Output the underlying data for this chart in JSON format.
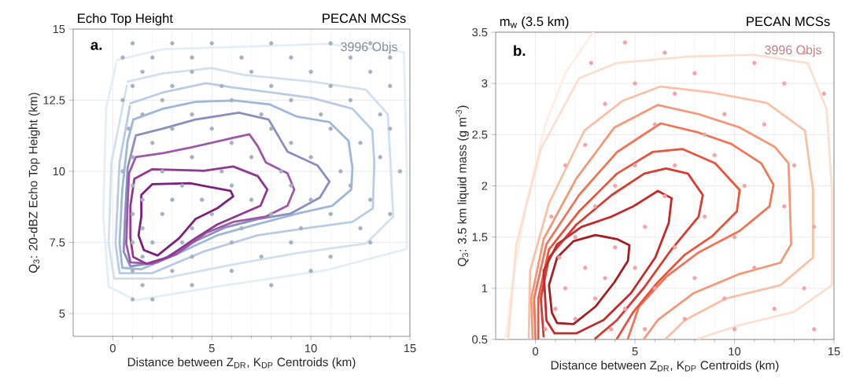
{
  "chart_data": [
    {
      "type": "line",
      "title": "Echo Top Height",
      "subtitle": "PECAN MCSs",
      "xlabel": "Distance between Z$_{DR}$, K$_{DP}$ Centroids (km)",
      "ylabel": "Q$_{3}$: 20-dBZ Echo Top Height (km)",
      "xlim": [
        -2,
        15
      ],
      "ylim": [
        4.2,
        15
      ],
      "xticks": [
        0,
        5,
        10,
        15
      ],
      "yticks": [
        5,
        7.5,
        10,
        12.5,
        15
      ],
      "grid": true,
      "annotations": [
        "a.",
        "3996 Objs"
      ],
      "series": [
        {
          "type": "scatter",
          "color": "#a9b1c0",
          "x": [
            1,
            3,
            5,
            8,
            11,
            13,
            0.5,
            2,
            4,
            6.5,
            9,
            12,
            14,
            1.5,
            4,
            7,
            10,
            13,
            1,
            3,
            5.5,
            8,
            11,
            14,
            0.5,
            2.5,
            6,
            9,
            12,
            1.5,
            4,
            7.5,
            10.5,
            13.5,
            0.8,
            3,
            5,
            8,
            11,
            14,
            2,
            6,
            9,
            12.5,
            1,
            4,
            7,
            10,
            13.5,
            0.5,
            2.5,
            5.5,
            8.5,
            11.5,
            14.5,
            1,
            3.5,
            6,
            9,
            12,
            1.5,
            3,
            4.5,
            7,
            10,
            13,
            1,
            2.5,
            5,
            8,
            11,
            14,
            1.5,
            4,
            6.5,
            9.5,
            12.5,
            1,
            2,
            3.5,
            6,
            9,
            13,
            1.5,
            4,
            7.5,
            11,
            1,
            3,
            6,
            10,
            1.5,
            4,
            8,
            1,
            2
          ],
          "values": [
            14.5,
            14.5,
            14.5,
            14.5,
            14.5,
            14.5,
            14,
            14,
            14,
            14,
            14,
            14,
            14,
            13.5,
            13.5,
            13.5,
            13.5,
            13.5,
            13,
            13,
            13,
            13,
            13,
            13,
            12.5,
            12.5,
            12.5,
            12.5,
            12.5,
            12,
            12,
            12,
            12,
            12,
            11.5,
            11.5,
            11.5,
            11.5,
            11.5,
            11.5,
            11,
            11,
            11,
            11,
            10.5,
            10.5,
            10.5,
            10.5,
            10.5,
            10,
            10,
            10,
            10,
            10,
            10,
            9.5,
            9.5,
            9.5,
            9.5,
            9.5,
            9,
            9,
            9,
            9,
            9,
            9,
            8.5,
            8.5,
            8.5,
            8.5,
            8.5,
            8.5,
            8,
            8,
            8,
            8,
            8,
            7.5,
            7.5,
            7.5,
            7.5,
            7.5,
            7.5,
            7,
            7,
            7,
            7,
            6.5,
            6.5,
            6.5,
            6.5,
            6,
            6,
            6,
            5.5,
            5.5
          ]
        },
        {
          "color": "#e4eef5",
          "x": [
            0.21,
            2.53,
            6.63,
            10.74,
            14.7,
            14.84,
            14.84,
            10.74,
            5.27,
            1.16,
            -0.21,
            -0.48,
            -0.34,
            0.18
          ],
          "values": [
            13.91,
            14.29,
            14.38,
            14.48,
            14.19,
            10.31,
            7.27,
            6.52,
            5.95,
            5.47,
            5.95,
            8.41,
            12.2,
            13.82
          ]
        },
        {
          "color": "#d3e0ee",
          "x": [
            0.75,
            2.53,
            5.0,
            6.63,
            10.06,
            12.78,
            13.88,
            14.02,
            14.16,
            12.78,
            9.36,
            5.95,
            2.53,
            0.07,
            -0.21,
            -0.07,
            0.71
          ],
          "values": [
            13.15,
            13.44,
            13.63,
            13.39,
            13.15,
            12.87,
            12.01,
            10.31,
            8.41,
            7.46,
            7.13,
            6.71,
            6.23,
            6.23,
            7.46,
            10.31,
            13.01
          ]
        },
        {
          "color": "#b9cce4",
          "x": [
            0.89,
            2.53,
            4.72,
            5.95,
            8.0,
            10.06,
            12.1,
            13.1,
            13.2,
            13.13,
            12.1,
            10.06,
            7.32,
            4.58,
            1.98,
            0.34,
            0.14,
            0.34,
            0.86
          ],
          "values": [
            12.39,
            12.77,
            13.1,
            12.96,
            12.77,
            12.58,
            12.2,
            11.45,
            10.31,
            8.7,
            8.22,
            8.03,
            7.75,
            7.18,
            6.42,
            6.42,
            7.46,
            10.31,
            12.29
          ]
        },
        {
          "color": "#9fb8d8",
          "x": [
            1.03,
            2.53,
            4.17,
            6.15,
            7.93,
            9.3,
            10.94,
            11.9,
            12.1,
            12.04,
            11.08,
            9.3,
            7.25,
            5.27,
            3.22,
            1.44,
            0.48,
            0.34,
            0.48,
            0.75,
            1.02
          ],
          "values": [
            11.82,
            12.2,
            12.44,
            12.49,
            12.35,
            11.92,
            11.73,
            11.07,
            10.12,
            9.36,
            8.79,
            8.51,
            8.13,
            7.75,
            7.09,
            6.56,
            6.61,
            7.46,
            9.36,
            11.07,
            11.78
          ]
        },
        {
          "color": "#8a8fc0",
          "x": [
            1.16,
            2.53,
            4.17,
            6.36,
            7.87,
            8.82,
            10.33,
            10.94,
            10.46,
            8.96,
            7.32,
            5.68,
            3.9,
            2.26,
            0.89,
            0.55,
            0.62,
            0.75,
            1.14
          ],
          "values": [
            11.26,
            11.5,
            11.82,
            12.06,
            11.82,
            10.69,
            10.21,
            9.64,
            9.08,
            8.51,
            8.32,
            8.03,
            7.46,
            6.8,
            6.66,
            7.18,
            8.41,
            10.12,
            11.2
          ]
        },
        {
          "color": "#9b59a8",
          "x": [
            1.16,
            2.53,
            3.9,
            5.95,
            6.9,
            7.32,
            7.73,
            8.82,
            9.16,
            8.82,
            7.73,
            6.08,
            4.72,
            3.22,
            1.98,
            0.89,
            0.68,
            0.75,
            0.82,
            1.14
          ],
          "values": [
            10.5,
            10.64,
            10.83,
            11.16,
            11.3,
            10.88,
            10.31,
            9.93,
            9.36,
            8.79,
            8.41,
            8.22,
            7.84,
            7.09,
            6.75,
            6.8,
            7.46,
            8.89,
            9.93,
            10.47
          ]
        },
        {
          "color": "#8e3a8f",
          "x": [
            1.09,
            1.98,
            4.58,
            6.08,
            7.32,
            7.8,
            7.46,
            6.2,
            5.27,
            4.17,
            2.8,
            1.71,
            1.03,
            0.89,
            0.89,
            1.08
          ],
          "values": [
            9.74,
            10.07,
            10.02,
            10.17,
            9.83,
            9.36,
            8.79,
            8.41,
            8.13,
            7.65,
            6.99,
            6.75,
            6.99,
            7.65,
            8.79,
            9.69
          ]
        },
        {
          "color": "#7b1f7f",
          "x": [
            1.44,
            2.0,
            3.9,
            5.95,
            6.08,
            5.27,
            4.17,
            3.35,
            2.26,
            1.57,
            1.3,
            1.44,
            1.44
          ],
          "values": [
            9.17,
            9.55,
            9.58,
            9.31,
            9.12,
            8.7,
            8.32,
            7.65,
            7.04,
            7.23,
            7.75,
            8.41,
            9.13
          ]
        }
      ]
    },
    {
      "type": "line",
      "title": "m$_{w}$ (3.5 km)",
      "subtitle": "PECAN MCSs",
      "xlabel": "Distance between Z$_{DR}$, K$_{DP}$ Centroids (km)",
      "ylabel": "Q$_{3}$: 3.5 km liquid mass (g m$^{-3}$)",
      "xlim": [
        -2,
        15
      ],
      "ylim": [
        0.5,
        3.5
      ],
      "xticks": [
        0,
        5,
        10,
        15
      ],
      "yticks": [
        0.5,
        1,
        1.5,
        2,
        2.5,
        3,
        3.5
      ],
      "grid": true,
      "annotations": [
        "b.",
        "3996 Objs"
      ],
      "series": [
        {
          "type": "scatter",
          "color": "#f4a3a8",
          "x": [
            0.5,
            1,
            1.5,
            2,
            2.5,
            1.2,
            3,
            3.5,
            2,
            4,
            4.5,
            5,
            5.5,
            6,
            3,
            4,
            5,
            6.5,
            7,
            7.5,
            8,
            8.5,
            9,
            9.5,
            10,
            10.5,
            11,
            11.5,
            12,
            12.5,
            13,
            13.5,
            14,
            14.5,
            14,
            6,
            7,
            8,
            9.5,
            11,
            12.5,
            13.5,
            2.5,
            3.5,
            5,
            6.5,
            1.5,
            2.8,
            4.5,
            0.8,
            10,
            5.5,
            7,
            8.5,
            3.8
          ],
          "values": [
            0.6,
            0.8,
            1.0,
            0.7,
            1.2,
            1.3,
            0.9,
            1.1,
            1.5,
            1.4,
            0.8,
            1.2,
            1.6,
            1.0,
            1.8,
            2.0,
            2.2,
            1.9,
            1.4,
            0.7,
            1.1,
            1.7,
            2.3,
            0.9,
            1.5,
            2.0,
            1.2,
            2.6,
            0.8,
            1.8,
            2.2,
            1.0,
            1.6,
            2.9,
            0.6,
            2.6,
            2.9,
            3.1,
            2.7,
            3.2,
            3.0,
            3.3,
            2.4,
            2.8,
            3.0,
            3.3,
            2.2,
            3.2,
            3.4,
            1.7,
            0.6,
            0.6,
            2.2,
            2.5,
            0.6
          ]
        },
        {
          "color": "#fdeee6",
          "x": [
            -1.5,
            -1.2,
            -0.5,
            0.5,
            1.5,
            2.9
          ],
          "values": [
            0.5,
            1.0,
            1.8,
            2.6,
            3.1,
            3.5
          ]
        },
        {
          "color": "#fbe0d2",
          "x": [
            -1.37,
            -0.96,
            0.27,
            2.19,
            4.1,
            7.52,
            10.94,
            13.68,
            14.63,
            14.9,
            14.9,
            12.99,
            10.26,
            8.2
          ],
          "values": [
            0.51,
            1.43,
            2.36,
            3.05,
            3.2,
            3.26,
            3.28,
            3.2,
            2.75,
            1.96,
            1.03,
            0.77,
            0.64,
            0.51
          ]
        },
        {
          "color": "#f9c2a8",
          "x": [
            -0.34,
            -0.27,
            0.68,
            2.46,
            4.38,
            6.29,
            8.89,
            11.62,
            13.54,
            13.95,
            13.95,
            12.31,
            9.57,
            7.52,
            6.56
          ],
          "values": [
            0.51,
            1.17,
            1.83,
            2.54,
            2.83,
            2.97,
            2.91,
            2.81,
            2.54,
            1.96,
            1.3,
            1.03,
            0.9,
            0.69,
            0.51
          ]
        },
        {
          "color": "#f4987a",
          "x": [
            -0.14,
            -0.21,
            0.41,
            2.05,
            3.97,
            6.15,
            8.2,
            10.26,
            12.03,
            12.72,
            12.85,
            12.31,
            10.26,
            7.93,
            6.15,
            5.47
          ],
          "values": [
            0.51,
            0.9,
            1.48,
            2.07,
            2.57,
            2.79,
            2.7,
            2.57,
            2.38,
            2.22,
            1.43,
            1.25,
            1.14,
            0.95,
            0.69,
            0.51
          ]
        },
        {
          "color": "#f0765a",
          "x": [
            0,
            -0.07,
            0.55,
            2.19,
            4.1,
            6.29,
            8.2,
            9.84,
            11.35,
            11.96,
            11.76,
            10.26,
            8.2,
            6.56,
            5.2,
            4.65
          ],
          "values": [
            0.51,
            0.9,
            1.43,
            1.91,
            2.33,
            2.61,
            2.52,
            2.41,
            2.22,
            2.01,
            1.8,
            1.56,
            1.35,
            1.11,
            0.82,
            0.51
          ]
        },
        {
          "color": "#e8553f",
          "x": [
            0.14,
            0.14,
            0.68,
            2.19,
            4.1,
            5.88,
            7.38,
            9.03,
            10.26,
            10.12,
            8.89,
            7.52,
            6.15,
            4.92,
            4.1
          ],
          "values": [
            0.51,
            0.9,
            1.38,
            1.75,
            2.12,
            2.33,
            2.36,
            2.22,
            1.96,
            1.75,
            1.51,
            1.33,
            1.06,
            0.77,
            0.51
          ]
        },
        {
          "color": "#d93a32",
          "x": [
            0.41,
            0.27,
            0.68,
            2.05,
            3.83,
            5.47,
            6.56,
            7.66,
            8.41,
            8.2,
            6.84,
            5.47,
            4.1,
            3.01
          ],
          "values": [
            0.53,
            0.9,
            1.3,
            1.62,
            1.91,
            2.12,
            2.17,
            2.12,
            1.91,
            1.7,
            1.38,
            1.01,
            0.69,
            0.51
          ]
        },
        {
          "color": "#c42a2a",
          "x": [
            0.55,
            0.41,
            1.09,
            2.32,
            3.83,
            4.92,
            6.15,
            6.84,
            6.7,
            6.02,
            4.79,
            3.42,
            2.05,
            0.96,
            0.57
          ],
          "values": [
            0.69,
            1.17,
            1.43,
            1.6,
            1.7,
            1.8,
            1.95,
            1.88,
            1.64,
            1.3,
            0.95,
            0.69,
            0.56,
            0.56,
            0.68
          ]
        },
        {
          "color": "#a51c22",
          "x": [
            0.82,
            0.68,
            1.09,
            1.91,
            3.01,
            4.1,
            4.72,
            4.65,
            3.97,
            3.01,
            1.91,
            1.09,
            0.83
          ],
          "values": [
            0.77,
            1.03,
            1.3,
            1.46,
            1.52,
            1.48,
            1.42,
            1.27,
            1.06,
            0.82,
            0.65,
            0.66,
            0.76
          ]
        }
      ]
    }
  ]
}
